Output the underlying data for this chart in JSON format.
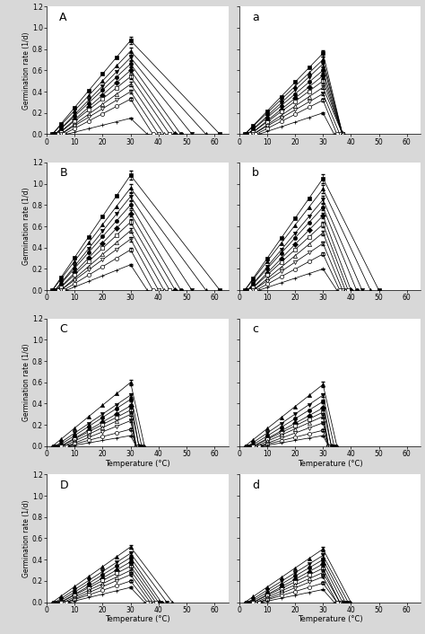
{
  "xlabel": "Temperature (°C)",
  "ylabel": "Germination rate (1/d)",
  "background_color": "#e8e8e8",
  "panel_bg": "#ffffff",
  "panels": {
    "A": {
      "label": "A",
      "peak_temp": 30,
      "meas_temps": [
        5,
        10,
        15,
        20,
        25,
        30
      ],
      "series": [
        {
          "peak_v": 0.88,
          "base_t": 2,
          "ceil_t": 62,
          "marker": "s",
          "filled": true
        },
        {
          "peak_v": 0.78,
          "base_t": 2,
          "ceil_t": 57,
          "marker": "^",
          "filled": true
        },
        {
          "peak_v": 0.72,
          "base_t": 3,
          "ceil_t": 52,
          "marker": "v",
          "filled": true
        },
        {
          "peak_v": 0.66,
          "base_t": 3,
          "ceil_t": 48,
          "marker": "o",
          "filled": true
        },
        {
          "peak_v": 0.6,
          "base_t": 4,
          "ceil_t": 46,
          "marker": "D",
          "filled": true
        },
        {
          "peak_v": 0.54,
          "base_t": 4,
          "ceil_t": 44,
          "marker": "s",
          "filled": false
        },
        {
          "peak_v": 0.47,
          "base_t": 5,
          "ceil_t": 42,
          "marker": "^",
          "filled": false
        },
        {
          "peak_v": 0.4,
          "base_t": 5,
          "ceil_t": 40,
          "marker": "v",
          "filled": false
        },
        {
          "peak_v": 0.33,
          "base_t": 6,
          "ceil_t": 38,
          "marker": "o",
          "filled": false
        },
        {
          "peak_v": 0.15,
          "base_t": 7,
          "ceil_t": 36,
          "marker": "+",
          "filled": false
        }
      ]
    },
    "a": {
      "label": "a",
      "peak_temp": 30,
      "meas_temps": [
        5,
        10,
        15,
        20,
        25,
        30
      ],
      "series": [
        {
          "peak_v": 0.76,
          "base_t": 2,
          "ceil_t": 37,
          "marker": "s",
          "filled": true
        },
        {
          "peak_v": 0.7,
          "base_t": 2,
          "ceil_t": 37,
          "marker": "^",
          "filled": true
        },
        {
          "peak_v": 0.66,
          "base_t": 3,
          "ceil_t": 37,
          "marker": "v",
          "filled": true
        },
        {
          "peak_v": 0.6,
          "base_t": 3,
          "ceil_t": 37,
          "marker": "o",
          "filled": true
        },
        {
          "peak_v": 0.55,
          "base_t": 4,
          "ceil_t": 37,
          "marker": "D",
          "filled": true
        },
        {
          "peak_v": 0.5,
          "base_t": 4,
          "ceil_t": 37,
          "marker": "s",
          "filled": false
        },
        {
          "peak_v": 0.44,
          "base_t": 5,
          "ceil_t": 37,
          "marker": "^",
          "filled": false
        },
        {
          "peak_v": 0.38,
          "base_t": 5,
          "ceil_t": 36,
          "marker": "v",
          "filled": false
        },
        {
          "peak_v": 0.32,
          "base_t": 6,
          "ceil_t": 35,
          "marker": "o",
          "filled": false
        },
        {
          "peak_v": 0.2,
          "base_t": 7,
          "ceil_t": 34,
          "marker": "+",
          "filled": false
        }
      ]
    },
    "B": {
      "label": "B",
      "peak_temp": 30,
      "meas_temps": [
        5,
        10,
        15,
        20,
        25,
        30
      ],
      "series": [
        {
          "peak_v": 1.08,
          "base_t": 2,
          "ceil_t": 62,
          "marker": "s",
          "filled": true
        },
        {
          "peak_v": 0.96,
          "base_t": 2,
          "ceil_t": 57,
          "marker": "^",
          "filled": true
        },
        {
          "peak_v": 0.88,
          "base_t": 3,
          "ceil_t": 52,
          "marker": "v",
          "filled": true
        },
        {
          "peak_v": 0.8,
          "base_t": 3,
          "ceil_t": 48,
          "marker": "o",
          "filled": true
        },
        {
          "peak_v": 0.72,
          "base_t": 4,
          "ceil_t": 46,
          "marker": "D",
          "filled": true
        },
        {
          "peak_v": 0.64,
          "base_t": 4,
          "ceil_t": 44,
          "marker": "s",
          "filled": false
        },
        {
          "peak_v": 0.56,
          "base_t": 5,
          "ceil_t": 42,
          "marker": "^",
          "filled": false
        },
        {
          "peak_v": 0.48,
          "base_t": 5,
          "ceil_t": 40,
          "marker": "v",
          "filled": false
        },
        {
          "peak_v": 0.38,
          "base_t": 6,
          "ceil_t": 38,
          "marker": "o",
          "filled": false
        },
        {
          "peak_v": 0.24,
          "base_t": 7,
          "ceil_t": 36,
          "marker": "+",
          "filled": false
        }
      ]
    },
    "b": {
      "label": "b",
      "peak_temp": 30,
      "meas_temps": [
        5,
        10,
        15,
        20,
        25,
        30
      ],
      "series": [
        {
          "peak_v": 1.05,
          "base_t": 2,
          "ceil_t": 50,
          "marker": "s",
          "filled": true
        },
        {
          "peak_v": 0.95,
          "base_t": 2,
          "ceil_t": 47,
          "marker": "^",
          "filled": true
        },
        {
          "peak_v": 0.85,
          "base_t": 3,
          "ceil_t": 44,
          "marker": "v",
          "filled": true
        },
        {
          "peak_v": 0.78,
          "base_t": 3,
          "ceil_t": 42,
          "marker": "o",
          "filled": true
        },
        {
          "peak_v": 0.7,
          "base_t": 4,
          "ceil_t": 40,
          "marker": "D",
          "filled": true
        },
        {
          "peak_v": 0.62,
          "base_t": 4,
          "ceil_t": 39,
          "marker": "s",
          "filled": false
        },
        {
          "peak_v": 0.54,
          "base_t": 5,
          "ceil_t": 38,
          "marker": "^",
          "filled": false
        },
        {
          "peak_v": 0.44,
          "base_t": 5,
          "ceil_t": 37,
          "marker": "v",
          "filled": false
        },
        {
          "peak_v": 0.34,
          "base_t": 6,
          "ceil_t": 36,
          "marker": "o",
          "filled": false
        },
        {
          "peak_v": 0.2,
          "base_t": 7,
          "ceil_t": 35,
          "marker": "+",
          "filled": false
        }
      ]
    },
    "C": {
      "label": "C",
      "peak_temp": 30,
      "meas_temps": [
        5,
        10,
        15,
        20,
        25,
        30
      ],
      "series": [
        {
          "peak_v": 0.6,
          "base_t": 2,
          "ceil_t": 35,
          "marker": "^",
          "filled": true
        },
        {
          "peak_v": 0.48,
          "base_t": 3,
          "ceil_t": 34,
          "marker": "v",
          "filled": true
        },
        {
          "peak_v": 0.44,
          "base_t": 4,
          "ceil_t": 33,
          "marker": "o",
          "filled": true
        },
        {
          "peak_v": 0.38,
          "base_t": 5,
          "ceil_t": 33,
          "marker": "D",
          "filled": true
        },
        {
          "peak_v": 0.34,
          "base_t": 5,
          "ceil_t": 32,
          "marker": "s",
          "filled": false
        },
        {
          "peak_v": 0.3,
          "base_t": 6,
          "ceil_t": 32,
          "marker": "^",
          "filled": false
        },
        {
          "peak_v": 0.24,
          "base_t": 7,
          "ceil_t": 32,
          "marker": "v",
          "filled": false
        },
        {
          "peak_v": 0.16,
          "base_t": 7,
          "ceil_t": 32,
          "marker": "o",
          "filled": false
        },
        {
          "peak_v": 0.1,
          "base_t": 8,
          "ceil_t": 32,
          "marker": "+",
          "filled": false
        }
      ]
    },
    "c": {
      "label": "c",
      "peak_temp": 30,
      "meas_temps": [
        5,
        10,
        15,
        20,
        25,
        30
      ],
      "series": [
        {
          "peak_v": 0.58,
          "base_t": 2,
          "ceil_t": 35,
          "marker": "^",
          "filled": true
        },
        {
          "peak_v": 0.48,
          "base_t": 3,
          "ceil_t": 34,
          "marker": "v",
          "filled": true
        },
        {
          "peak_v": 0.42,
          "base_t": 4,
          "ceil_t": 33,
          "marker": "o",
          "filled": true
        },
        {
          "peak_v": 0.36,
          "base_t": 5,
          "ceil_t": 33,
          "marker": "D",
          "filled": true
        },
        {
          "peak_v": 0.32,
          "base_t": 5,
          "ceil_t": 32,
          "marker": "s",
          "filled": false
        },
        {
          "peak_v": 0.28,
          "base_t": 6,
          "ceil_t": 32,
          "marker": "^",
          "filled": false
        },
        {
          "peak_v": 0.22,
          "base_t": 7,
          "ceil_t": 32,
          "marker": "v",
          "filled": false
        },
        {
          "peak_v": 0.15,
          "base_t": 7,
          "ceil_t": 32,
          "marker": "o",
          "filled": false
        },
        {
          "peak_v": 0.1,
          "base_t": 8,
          "ceil_t": 32,
          "marker": "+",
          "filled": false
        }
      ]
    },
    "D": {
      "label": "D",
      "peak_temp": 30,
      "meas_temps": [
        5,
        10,
        15,
        20,
        25,
        30
      ],
      "series": [
        {
          "peak_v": 0.52,
          "base_t": 2,
          "ceil_t": 45,
          "marker": "^",
          "filled": true
        },
        {
          "peak_v": 0.46,
          "base_t": 3,
          "ceil_t": 43,
          "marker": "v",
          "filled": true
        },
        {
          "peak_v": 0.42,
          "base_t": 4,
          "ceil_t": 41,
          "marker": "o",
          "filled": true
        },
        {
          "peak_v": 0.38,
          "base_t": 5,
          "ceil_t": 40,
          "marker": "D",
          "filled": true
        },
        {
          "peak_v": 0.34,
          "base_t": 5,
          "ceil_t": 39,
          "marker": "s",
          "filled": false
        },
        {
          "peak_v": 0.3,
          "base_t": 6,
          "ceil_t": 38,
          "marker": "^",
          "filled": false
        },
        {
          "peak_v": 0.26,
          "base_t": 7,
          "ceil_t": 37,
          "marker": "v",
          "filled": false
        },
        {
          "peak_v": 0.2,
          "base_t": 7,
          "ceil_t": 36,
          "marker": "o",
          "filled": false
        },
        {
          "peak_v": 0.14,
          "base_t": 8,
          "ceil_t": 35,
          "marker": "+",
          "filled": false
        }
      ]
    },
    "d": {
      "label": "d",
      "peak_temp": 30,
      "meas_temps": [
        5,
        10,
        15,
        20,
        25,
        30
      ],
      "series": [
        {
          "peak_v": 0.5,
          "base_t": 2,
          "ceil_t": 40,
          "marker": "^",
          "filled": true
        },
        {
          "peak_v": 0.44,
          "base_t": 3,
          "ceil_t": 39,
          "marker": "v",
          "filled": true
        },
        {
          "peak_v": 0.4,
          "base_t": 4,
          "ceil_t": 38,
          "marker": "o",
          "filled": true
        },
        {
          "peak_v": 0.36,
          "base_t": 5,
          "ceil_t": 37,
          "marker": "D",
          "filled": true
        },
        {
          "peak_v": 0.32,
          "base_t": 5,
          "ceil_t": 36,
          "marker": "s",
          "filled": false
        },
        {
          "peak_v": 0.28,
          "base_t": 6,
          "ceil_t": 36,
          "marker": "^",
          "filled": false
        },
        {
          "peak_v": 0.24,
          "base_t": 7,
          "ceil_t": 35,
          "marker": "v",
          "filled": false
        },
        {
          "peak_v": 0.18,
          "base_t": 7,
          "ceil_t": 35,
          "marker": "o",
          "filled": false
        },
        {
          "peak_v": 0.12,
          "base_t": 8,
          "ceil_t": 34,
          "marker": "+",
          "filled": false
        }
      ]
    }
  }
}
